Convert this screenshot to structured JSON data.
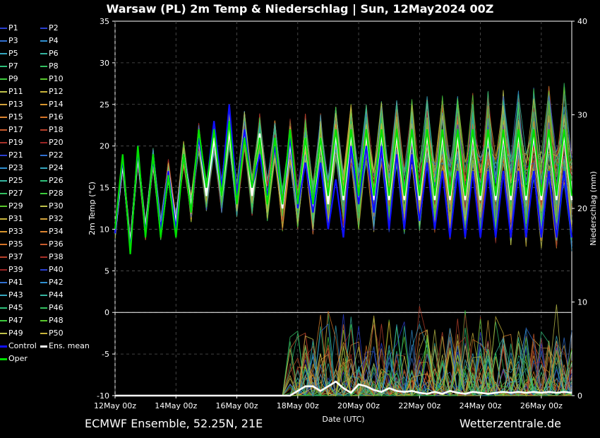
{
  "title": "Warsaw  (PL)  2m Temp & Niederschlag | Sun, 12May2024 00Z",
  "footer_left": "ECMWF Ensemble, 52.25N, 21E",
  "footer_right": "Wetterzentrale.de",
  "legend": [
    {
      "label": "P1",
      "color": "#2a3fd0"
    },
    {
      "label": "P2",
      "color": "#2a3fd0"
    },
    {
      "label": "P3",
      "color": "#2f6fd0"
    },
    {
      "label": "P4",
      "color": "#2f8fd0"
    },
    {
      "label": "P5",
      "color": "#35a7c0"
    },
    {
      "label": "P6",
      "color": "#35b5a0"
    },
    {
      "label": "P7",
      "color": "#2ec07a"
    },
    {
      "label": "P8",
      "color": "#33c060"
    },
    {
      "label": "P9",
      "color": "#3ccc3c"
    },
    {
      "label": "P10",
      "color": "#59c82c"
    },
    {
      "label": "P11",
      "color": "#bfc24a"
    },
    {
      "label": "P12",
      "color": "#c8b43a"
    },
    {
      "label": "P13",
      "color": "#d2a23a"
    },
    {
      "label": "P14",
      "color": "#d8952c"
    },
    {
      "label": "P15",
      "color": "#dc8430"
    },
    {
      "label": "P16",
      "color": "#d67326"
    },
    {
      "label": "P17",
      "color": "#c85a2c"
    },
    {
      "label": "P18",
      "color": "#b8402a"
    },
    {
      "label": "P19",
      "color": "#a83028"
    },
    {
      "label": "P20",
      "color": "#9a2424"
    },
    {
      "label": "P21",
      "color": "#2a3fd0"
    },
    {
      "label": "P22",
      "color": "#2f6fd0"
    },
    {
      "label": "P23",
      "color": "#2f8fd0"
    },
    {
      "label": "P24",
      "color": "#35a7c0"
    },
    {
      "label": "P25",
      "color": "#35b5a0"
    },
    {
      "label": "P26",
      "color": "#2ec07a"
    },
    {
      "label": "P27",
      "color": "#33c060"
    },
    {
      "label": "P28",
      "color": "#3ccc3c"
    },
    {
      "label": "P29",
      "color": "#59c82c"
    },
    {
      "label": "P30",
      "color": "#bfc24a"
    },
    {
      "label": "P31",
      "color": "#c8b43a"
    },
    {
      "label": "P32",
      "color": "#d2a23a"
    },
    {
      "label": "P33",
      "color": "#d8952c"
    },
    {
      "label": "P34",
      "color": "#dc8430"
    },
    {
      "label": "P35",
      "color": "#d67326"
    },
    {
      "label": "P36",
      "color": "#c85a2c"
    },
    {
      "label": "P37",
      "color": "#b8402a"
    },
    {
      "label": "P38",
      "color": "#a83028"
    },
    {
      "label": "P39",
      "color": "#9a2424"
    },
    {
      "label": "P40",
      "color": "#2a3fd0"
    },
    {
      "label": "P41",
      "color": "#2f6fd0"
    },
    {
      "label": "P42",
      "color": "#2f8fd0"
    },
    {
      "label": "P43",
      "color": "#35a7c0"
    },
    {
      "label": "P44",
      "color": "#35b5a0"
    },
    {
      "label": "P45",
      "color": "#2ec07a"
    },
    {
      "label": "P46",
      "color": "#33c060"
    },
    {
      "label": "P47",
      "color": "#3ccc3c"
    },
    {
      "label": "P48",
      "color": "#59c82c"
    },
    {
      "label": "P49",
      "color": "#bfc24a"
    },
    {
      "label": "P50",
      "color": "#c8b43a"
    },
    {
      "label": "Control",
      "color": "#1010ff"
    },
    {
      "label": "Ens. mean",
      "color": "#ffffff"
    },
    {
      "label": "Oper",
      "color": "#00e000"
    }
  ],
  "chart_data": {
    "type": "line",
    "xlabel": "Date (UTC)",
    "ylabel": "2m Temp (°C)",
    "ylabel_right": "Niederschlag (mm)",
    "x_ticks": [
      "12May 00z",
      "14May 00z",
      "16May 00z",
      "18May 00z",
      "20May 00z",
      "22May 00z",
      "24May 00z",
      "26May 00z"
    ],
    "x_step_hours": 6,
    "ylim": [
      -10,
      35
    ],
    "yticks": [
      -10,
      -5,
      0,
      5,
      10,
      15,
      20,
      25,
      30,
      35
    ],
    "ylim_right": [
      0,
      40
    ],
    "yticks_right": [
      0,
      10,
      20,
      30,
      40
    ],
    "grid": true,
    "series": [
      {
        "name": "Ens. mean",
        "kind": "temp",
        "color": "#ffffff",
        "values": [
          9.5,
          18,
          8,
          19,
          9.8,
          18.5,
          10,
          17,
          10.5,
          19,
          12.5,
          21,
          14,
          21,
          14,
          22,
          13.5,
          22,
          14,
          21.5,
          13.5,
          20.5,
          12.5,
          20.5,
          12.5,
          21,
          12.5,
          21,
          13,
          21.5,
          13.5,
          21.5,
          13.5,
          21.5,
          13.5,
          21.5,
          13.5,
          21.5,
          13.5,
          21.5,
          13.5,
          21.5,
          13.5,
          21.5,
          13.5,
          21.5,
          13.5,
          21.5,
          13.5,
          21.5,
          13.5,
          21.5,
          13.5,
          21.5,
          13.5,
          21.5,
          13.5,
          21.5,
          13.5,
          21.5,
          13.5
        ]
      },
      {
        "name": "Control",
        "kind": "temp",
        "color": "#1010ff",
        "values": [
          9.5,
          18.5,
          7.5,
          19.5,
          9.5,
          18.5,
          10,
          17,
          10,
          19,
          12,
          21,
          15,
          23,
          15,
          25,
          14,
          22,
          15,
          19,
          14,
          20,
          13,
          21,
          12.5,
          18,
          12,
          18,
          10,
          16,
          9,
          20,
          13,
          20,
          12,
          20,
          10,
          19,
          10,
          19,
          11,
          18,
          10,
          17,
          9,
          17,
          9,
          17,
          9,
          17,
          9,
          17,
          9,
          17,
          9,
          17,
          9,
          17,
          9,
          17,
          9
        ]
      },
      {
        "name": "Oper",
        "kind": "temp",
        "color": "#00e000",
        "values": [
          10,
          19,
          7,
          20,
          9,
          19,
          9,
          16.5,
          9,
          19,
          12,
          22,
          15,
          22,
          14,
          23,
          13,
          21,
          15,
          21,
          13,
          21,
          13,
          22,
          13,
          21,
          13,
          21,
          14,
          22,
          14,
          22,
          14,
          22,
          14,
          22,
          14,
          22,
          14,
          22,
          14,
          22,
          14,
          22,
          14,
          22,
          14,
          22,
          14,
          22,
          14,
          22,
          14,
          22,
          14,
          22,
          14,
          22,
          14,
          22,
          14
        ]
      },
      {
        "name": "Ens. mean",
        "kind": "precip",
        "color": "#ffffff",
        "values": [
          0,
          0,
          0,
          0,
          0,
          0,
          0,
          0,
          0,
          0,
          0,
          0,
          0,
          0,
          0,
          0,
          0,
          0,
          0,
          0,
          0,
          0,
          0,
          0,
          0.5,
          1,
          1,
          0.5,
          1,
          1.5,
          0.8,
          0.3,
          1.2,
          1.0,
          0.6,
          0.4,
          0.8,
          0.5,
          0.4,
          0.5,
          0.3,
          0.2,
          0.4,
          0.2,
          0.5,
          0.3,
          0.2,
          0.4,
          0.3,
          0.2,
          0.3,
          0.4,
          0.3,
          0.4,
          0.3,
          0.4,
          0.3,
          0.4,
          0.3,
          0.4,
          0.3
        ]
      }
    ]
  }
}
